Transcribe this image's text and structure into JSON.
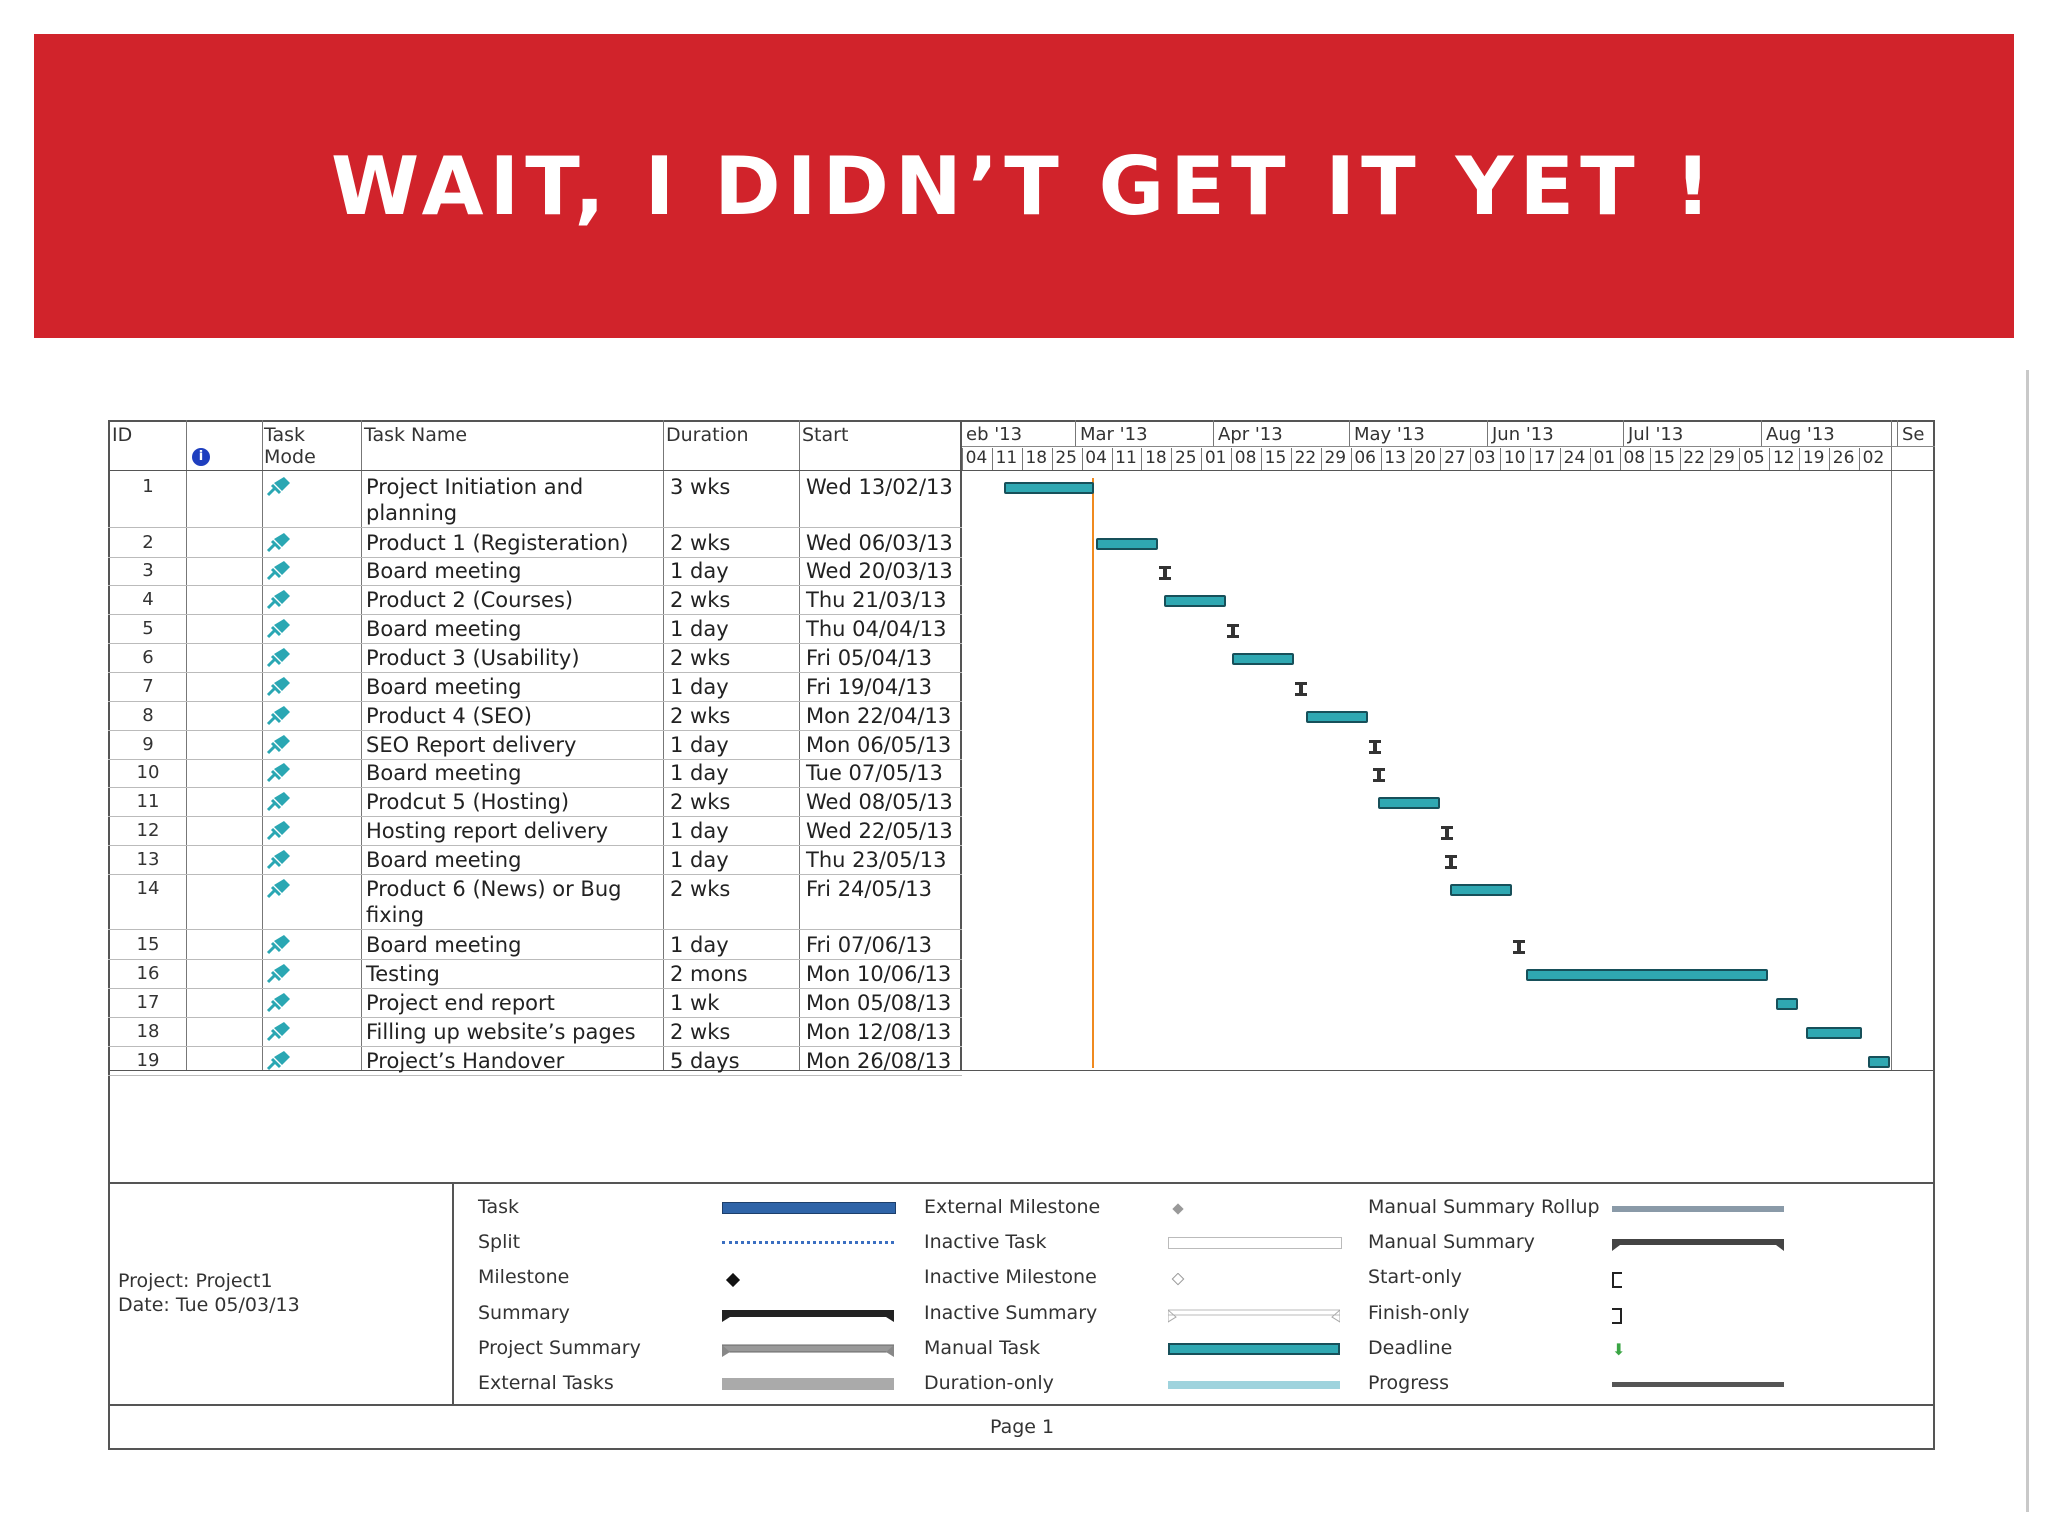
{
  "slide": {
    "title": "WAIT, I DIDN’T GET IT YET !"
  },
  "table": {
    "headers": {
      "id": "ID",
      "mode": "Task Mode",
      "name": "Task Name",
      "duration": "Duration",
      "start": "Start"
    },
    "rows": [
      {
        "id": "1",
        "name": "Project Initiation and planning",
        "duration": "3 wks",
        "start": "Wed 13/02/13"
      },
      {
        "id": "2",
        "name": "Product 1 (Registeration)",
        "duration": "2 wks",
        "start": "Wed 06/03/13"
      },
      {
        "id": "3",
        "name": "Board meeting",
        "duration": "1 day",
        "start": "Wed 20/03/13"
      },
      {
        "id": "4",
        "name": "Product 2 (Courses)",
        "duration": "2 wks",
        "start": "Thu 21/03/13"
      },
      {
        "id": "5",
        "name": "Board meeting",
        "duration": "1 day",
        "start": "Thu 04/04/13"
      },
      {
        "id": "6",
        "name": "Product 3 (Usability)",
        "duration": "2 wks",
        "start": "Fri 05/04/13"
      },
      {
        "id": "7",
        "name": "Board meeting",
        "duration": "1 day",
        "start": "Fri 19/04/13"
      },
      {
        "id": "8",
        "name": "Product 4 (SEO)",
        "duration": "2 wks",
        "start": "Mon 22/04/13"
      },
      {
        "id": "9",
        "name": "SEO Report delivery",
        "duration": "1 day",
        "start": "Mon 06/05/13"
      },
      {
        "id": "10",
        "name": "Board meeting",
        "duration": "1 day",
        "start": "Tue 07/05/13"
      },
      {
        "id": "11",
        "name": "Prodcut 5 (Hosting)",
        "duration": "2 wks",
        "start": "Wed 08/05/13"
      },
      {
        "id": "12",
        "name": "Hosting report delivery",
        "duration": "1 day",
        "start": "Wed 22/05/13"
      },
      {
        "id": "13",
        "name": "Board meeting",
        "duration": "1 day",
        "start": "Thu 23/05/13"
      },
      {
        "id": "14",
        "name": "Product 6 (News) or Bug fixing",
        "duration": "2 wks",
        "start": "Fri 24/05/13"
      },
      {
        "id": "15",
        "name": "Board meeting",
        "duration": "1 day",
        "start": "Fri 07/06/13"
      },
      {
        "id": "16",
        "name": "Testing",
        "duration": "2 mons",
        "start": "Mon 10/06/13"
      },
      {
        "id": "17",
        "name": "Project end report",
        "duration": "1 wk",
        "start": "Mon 05/08/13"
      },
      {
        "id": "18",
        "name": "Filling up website’s pages",
        "duration": "2 wks",
        "start": "Mon 12/08/13"
      },
      {
        "id": "19",
        "name": "Project’s Handover",
        "duration": "5 days",
        "start": "Mon 26/08/13"
      }
    ]
  },
  "timeline": {
    "months": [
      "eb '13",
      "Mar '13",
      "Apr '13",
      "May '13",
      "Jun '13",
      "Jul '13",
      "Aug '13",
      "Se"
    ],
    "days": [
      "04",
      "11",
      "18",
      "25",
      "04",
      "11",
      "18",
      "25",
      "01",
      "08",
      "15",
      "22",
      "29",
      "06",
      "13",
      "20",
      "27",
      "03",
      "10",
      "17",
      "24",
      "01",
      "08",
      "15",
      "22",
      "29",
      "05",
      "12",
      "19",
      "26",
      "02"
    ]
  },
  "legend": {
    "col1": [
      "Task",
      "Split",
      "Milestone",
      "Summary",
      "Project Summary",
      "External Tasks"
    ],
    "col2": [
      "External Milestone",
      "Inactive Task",
      "Inactive Milestone",
      "Inactive Summary",
      "Manual Task",
      "Duration-only"
    ],
    "col3": [
      "Manual Summary Rollup",
      "Manual Summary",
      "Start-only",
      "Finish-only",
      "Deadline",
      "Progress"
    ]
  },
  "footer": {
    "project": "Project: Project1",
    "date": "Date: Tue 05/03/13",
    "page": "Page 1"
  },
  "colors": {
    "banner": "#d1232b",
    "task_bar": "#2fa8b2",
    "today_line": "#f08a1f",
    "pin_icon": "#2aa7b3",
    "info_icon": "#1f3fbf"
  }
}
